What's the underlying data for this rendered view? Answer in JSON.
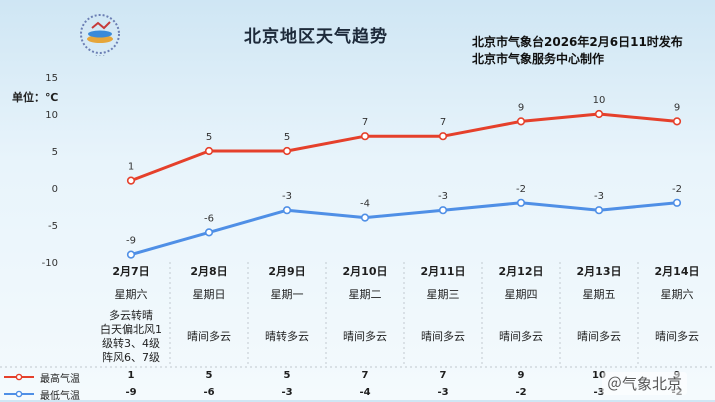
{
  "title": "北京地区天气趋势",
  "issuer": {
    "line1": "北京市气象台2026年2月6日11时发布",
    "line2": "北京市气象服务中心制作"
  },
  "unit_label": "单位：℃",
  "watermark": "＠气象北京",
  "colors": {
    "high": "#e5402b",
    "low": "#4f8fe6",
    "grid": "#aeb6bd"
  },
  "days": [
    {
      "date": "2月7日",
      "weekday": "星期六",
      "weather": [
        "多云转晴",
        "白天偏北风1",
        "级转3、4级",
        "阵风6、7级"
      ]
    },
    {
      "date": "2月8日",
      "weekday": "星期日",
      "weather": [
        "晴间多云"
      ]
    },
    {
      "date": "2月9日",
      "weekday": "星期一",
      "weather": [
        "晴转多云"
      ]
    },
    {
      "date": "2月10日",
      "weekday": "星期二",
      "weather": [
        "晴间多云"
      ]
    },
    {
      "date": "2月11日",
      "weekday": "星期三",
      "weather": [
        "晴间多云"
      ]
    },
    {
      "date": "2月12日",
      "weekday": "星期四",
      "weather": [
        "晴间多云"
      ]
    },
    {
      "date": "2月13日",
      "weekday": "星期五",
      "weather": [
        "晴间多云"
      ]
    },
    {
      "date": "2月14日",
      "weekday": "星期六",
      "weather": [
        "晴间多云"
      ]
    }
  ],
  "chart_data": {
    "type": "line",
    "categories": [
      "2月7日",
      "2月8日",
      "2月9日",
      "2月10日",
      "2月11日",
      "2月12日",
      "2月13日",
      "2月14日"
    ],
    "series": [
      {
        "name": "最高气温",
        "values": [
          1,
          5,
          5,
          7,
          7,
          9,
          10,
          9
        ],
        "color": "#e5402b"
      },
      {
        "name": "最低气温",
        "values": [
          -9,
          -6,
          -3,
          -4,
          -3,
          -2,
          -3,
          -2
        ],
        "color": "#4f8fe6"
      }
    ],
    "ylim": [
      -10,
      15
    ],
    "yticks": [
      15,
      10,
      5,
      0,
      -5,
      -10
    ],
    "ylabel": "单位：℃",
    "grid": false,
    "legend": "bottom-left"
  }
}
